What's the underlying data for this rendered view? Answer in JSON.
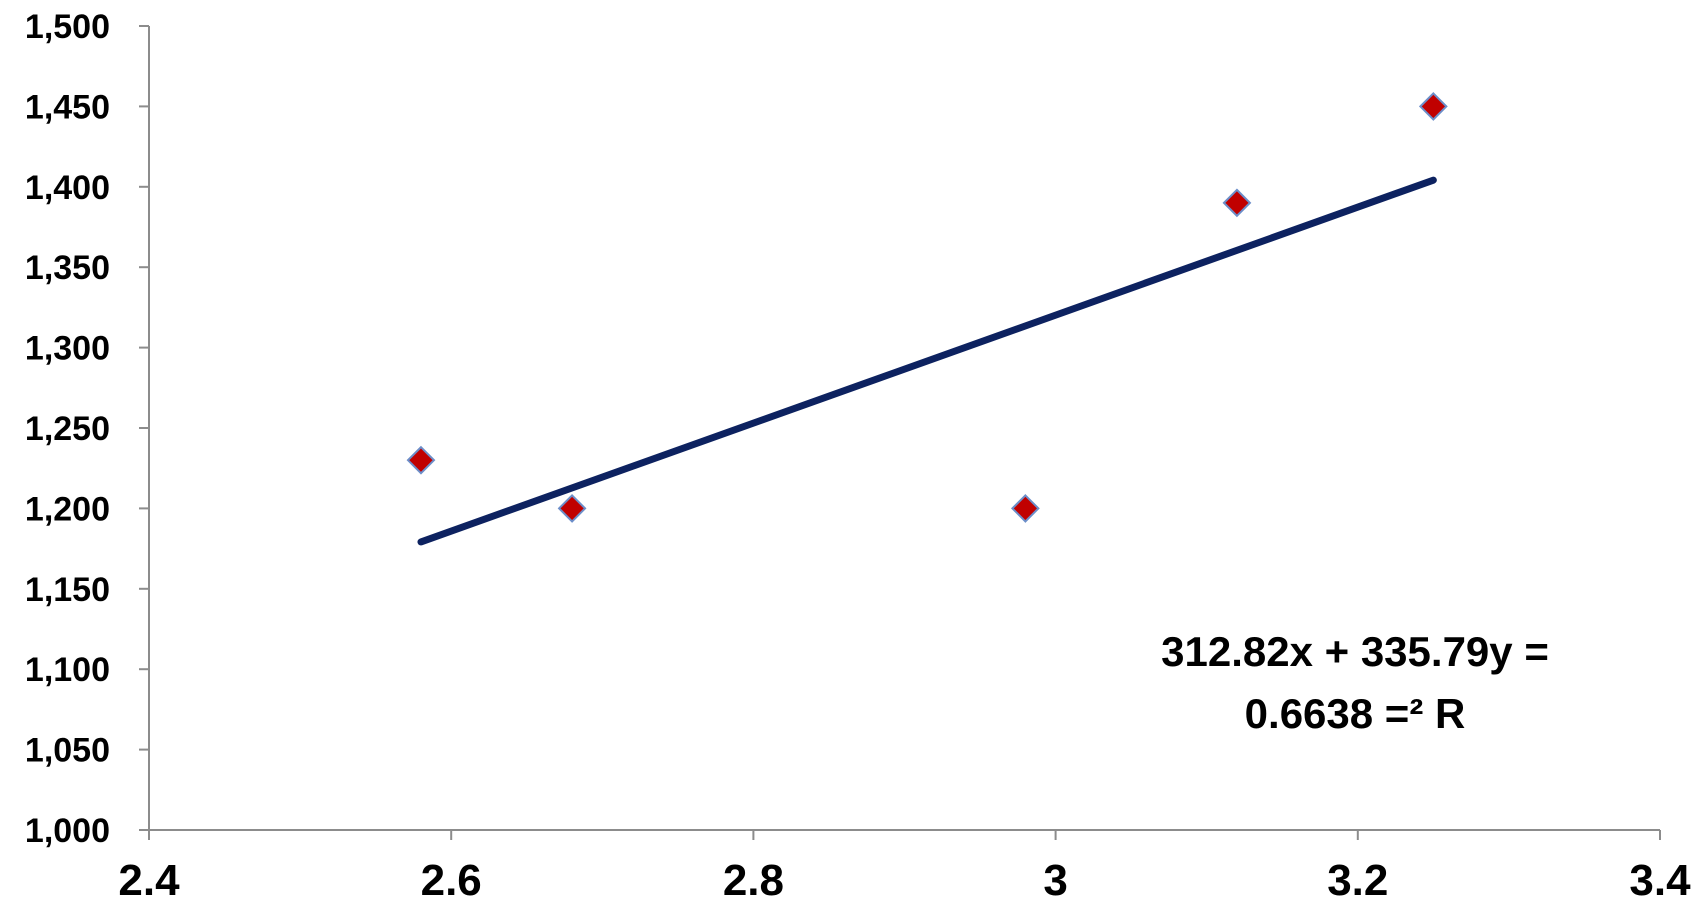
{
  "chart_data": {
    "type": "scatter",
    "title": "",
    "xlabel": "",
    "ylabel": "",
    "xlim": [
      2.4,
      3.4
    ],
    "ylim": [
      1000,
      1500
    ],
    "x_ticks": [
      2.4,
      2.6,
      2.8,
      3.0,
      3.2,
      3.4
    ],
    "x_tick_labels": [
      "2.4",
      "2.6",
      "2.8",
      "3",
      "3.2",
      "3.4"
    ],
    "y_ticks": [
      1000,
      1050,
      1100,
      1150,
      1200,
      1250,
      1300,
      1350,
      1400,
      1450,
      1500
    ],
    "y_tick_labels": [
      "1,000",
      "1,050",
      "1,100",
      "1,150",
      "1,200",
      "1,250",
      "1,300",
      "1,350",
      "1,400",
      "1,450",
      "1,500"
    ],
    "grid": false,
    "series": [
      {
        "points": [
          {
            "x": 2.58,
            "y": 1230
          },
          {
            "x": 2.68,
            "y": 1200
          },
          {
            "x": 2.98,
            "y": 1200
          },
          {
            "x": 3.12,
            "y": 1390
          },
          {
            "x": 3.25,
            "y": 1450
          }
        ],
        "marker": "diamond",
        "color": "#c00000",
        "edge_color": "#6c8ec9"
      }
    ],
    "trendline": {
      "type": "linear",
      "slope": 335.79,
      "intercept": 312.82,
      "x_range": [
        2.58,
        3.25
      ],
      "color": "#0d2260"
    },
    "annotation": {
      "line1": "312.82x + 335.79y =",
      "line2": "0.6638 =² R"
    }
  }
}
